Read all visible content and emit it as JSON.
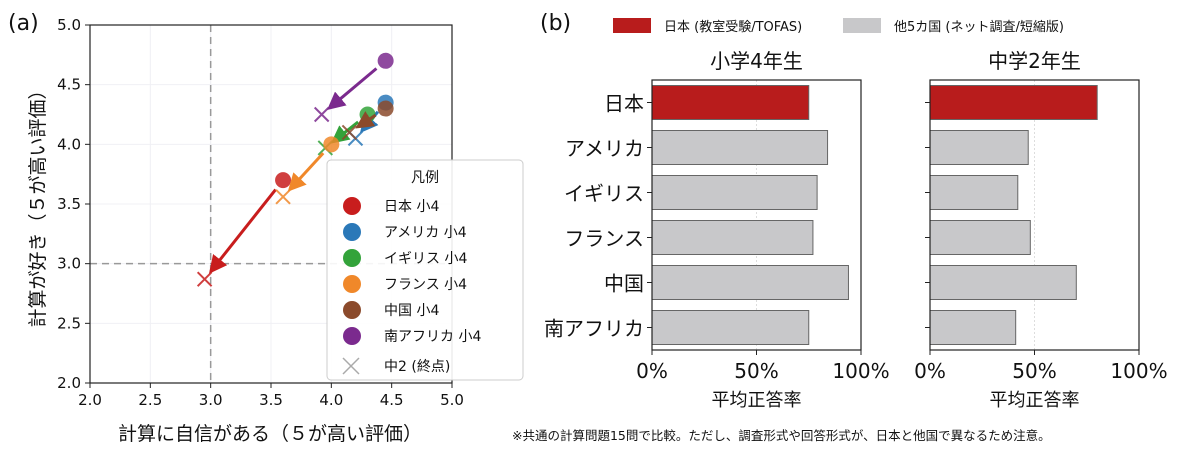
{
  "chart_data": [
    {
      "type": "scatter",
      "panel_label": "(a)",
      "xlabel": "計算に自信がある（５が高い評価）",
      "ylabel": "計算が好き（５が高い評価）",
      "xlim": [
        2.0,
        5.0
      ],
      "ylim": [
        2.0,
        5.0
      ],
      "xticks": [
        "2.0",
        "2.5",
        "3.0",
        "3.5",
        "4.0",
        "4.5",
        "5.0"
      ],
      "yticks": [
        "2.0",
        "2.5",
        "3.0",
        "3.5",
        "4.0",
        "4.5",
        "5.0"
      ],
      "reference_lines": {
        "x": 3.0,
        "y": 3.0
      },
      "grid": true,
      "legend_title": "凡例",
      "legend_placement": "bottom-right",
      "series": [
        {
          "name": "日本 小4",
          "color": "#c81d1d",
          "start": [
            3.6,
            3.7
          ],
          "end": [
            2.95,
            2.87
          ]
        },
        {
          "name": "アメリカ 小4",
          "color": "#2a78b8",
          "start": [
            4.45,
            4.35
          ],
          "end": [
            4.2,
            4.05
          ]
        },
        {
          "name": "イギリス 小4",
          "color": "#33a33a",
          "start": [
            4.3,
            4.25
          ],
          "end": [
            3.95,
            3.97
          ]
        },
        {
          "name": "フランス 小4",
          "color": "#f0882a",
          "start": [
            4.0,
            4.0
          ],
          "end": [
            3.6,
            3.56
          ]
        },
        {
          "name": "中国 小4",
          "color": "#8b4a2b",
          "start": [
            4.45,
            4.3
          ],
          "end": [
            4.15,
            4.1
          ]
        },
        {
          "name": "南アフリカ 小4",
          "color": "#7b2a8e",
          "start": [
            4.45,
            4.7
          ],
          "end": [
            3.92,
            4.25
          ]
        }
      ],
      "end_marker_label": "中2 (終点)"
    },
    {
      "type": "bar",
      "panel_label": "(b)",
      "orientation": "horizontal",
      "legend": [
        {
          "name": "日本 (教室受験/TOFAS)",
          "color": "#b81c1c"
        },
        {
          "name": "他5カ国 (ネット調査/短縮版)",
          "color": "#c8c8ca"
        }
      ],
      "categories": [
        "日本",
        "アメリカ",
        "イギリス",
        "フランス",
        "中国",
        "南アフリカ"
      ],
      "xlabel": "平均正答率",
      "xticks": [
        "0%",
        "50%",
        "100%"
      ],
      "xlim": [
        0,
        100
      ],
      "panels": [
        {
          "title": "小学4年生",
          "values": [
            75,
            84,
            79,
            77,
            94,
            75
          ]
        },
        {
          "title": "中学2年生",
          "values": [
            80,
            47,
            42,
            48,
            70,
            41
          ]
        }
      ]
    }
  ],
  "footnote": "※共通の計算問題15問で比較。ただし、調査形式や回答形式が、日本と他国で異なるため注意。"
}
